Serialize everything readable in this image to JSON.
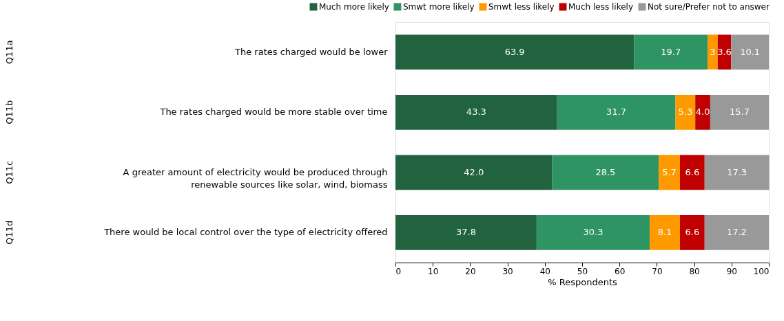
{
  "chart_data": {
    "type": "bar",
    "orientation": "horizontal",
    "stacked": true,
    "categories": [
      "The rates charged would be lower",
      "The rates charged would be more stable over time",
      "A greater amount of electricity would be produced through\nrenewable sources like solar, wind, biomass",
      "There would be local control over the type of electricity offered"
    ],
    "series": [
      {
        "name": "Much more likely",
        "color": "#21633f",
        "values": [
          63.9,
          43.3,
          42.0,
          37.8
        ],
        "value_labels": [
          "63.9",
          "43.3",
          "42.0",
          "37.8"
        ]
      },
      {
        "name": "Smwt more likely",
        "color": "#2e9463",
        "values": [
          19.7,
          31.7,
          28.5,
          30.3
        ],
        "value_labels": [
          "19.7",
          "31.7",
          "28.5",
          "30.3"
        ]
      },
      {
        "name": "Smwt less likely",
        "color": "#ff9900",
        "values": [
          2.7,
          5.3,
          5.7,
          8.1
        ],
        "value_labels": [
          "3",
          "5.3",
          "5.7",
          "8.1"
        ]
      },
      {
        "name": "Much less likely",
        "color": "#c00000",
        "values": [
          3.6,
          4.0,
          6.6,
          6.6
        ],
        "value_labels": [
          "3.6",
          "4.0",
          "6.6",
          "6.6"
        ]
      },
      {
        "name": "Not sure/Prefer not to answer",
        "color": "#999999",
        "values": [
          10.1,
          15.7,
          17.3,
          17.2
        ],
        "value_labels": [
          "10.1",
          "15.7",
          "17.3",
          "17.2"
        ]
      }
    ],
    "xlim": [
      0,
      100
    ],
    "xticks": [
      0,
      10,
      20,
      30,
      40,
      50,
      60,
      70,
      80,
      90,
      100
    ],
    "xlabel": "% Respondents",
    "legend": "top",
    "grid": false,
    "annotations": [
      "Q11a",
      "Q11b",
      "Q11c",
      "Q11d"
    ]
  }
}
